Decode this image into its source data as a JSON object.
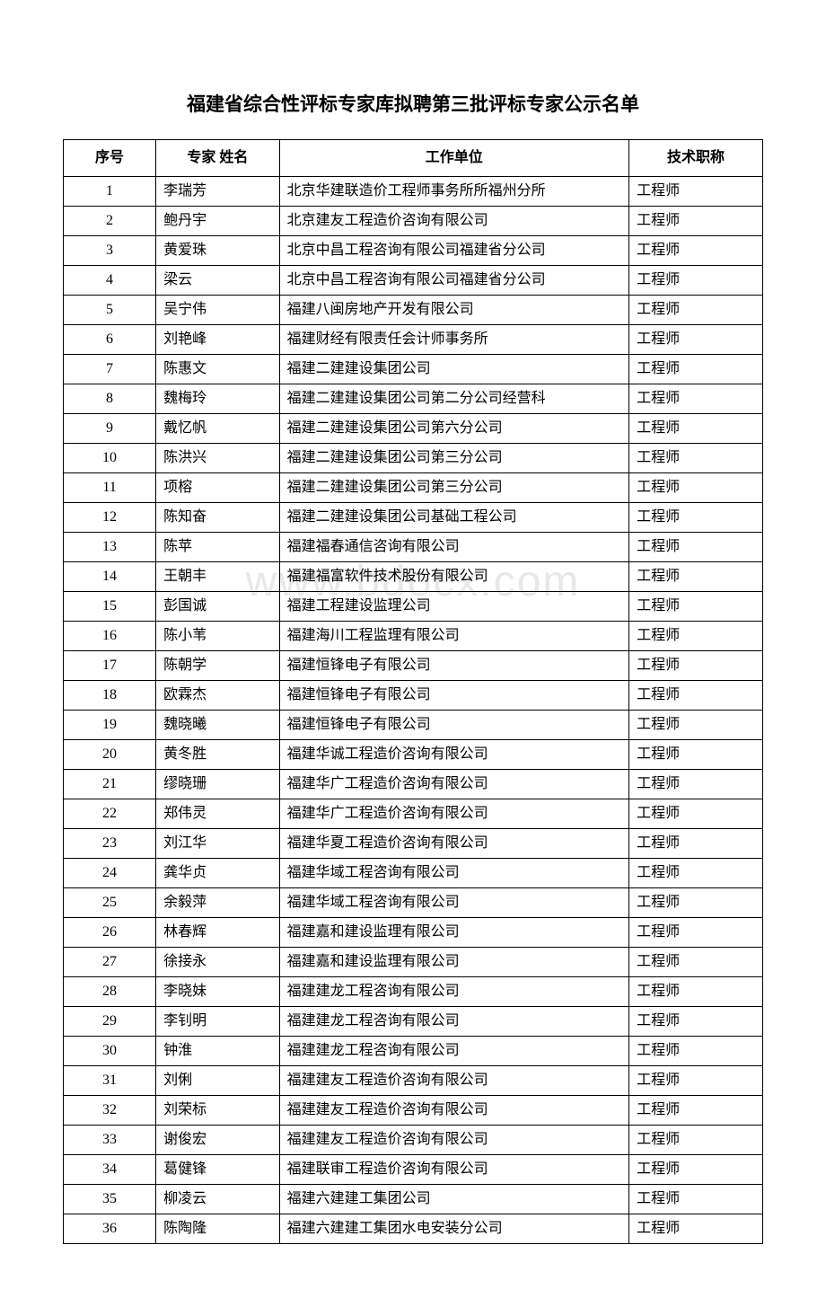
{
  "title": "福建省综合性评标专家库拟聘第三批评标专家公示名单",
  "watermark": "www.bdocx.com",
  "table": {
    "headers": {
      "seq": "序号",
      "name": "专家 姓名",
      "org": "工作单位",
      "title": "技术职称"
    },
    "col_widths": {
      "seq": 90,
      "name": 120,
      "org": 340,
      "title": 130
    },
    "border_color": "#000000",
    "font_size": 16,
    "header_font_weight": "bold",
    "rows": [
      {
        "seq": "1",
        "name": "李瑞芳",
        "org": "北京华建联造价工程师事务所所福州分所",
        "title": "工程师"
      },
      {
        "seq": "2",
        "name": "鲍丹宇",
        "org": "北京建友工程造价咨询有限公司",
        "title": "工程师"
      },
      {
        "seq": "3",
        "name": "黄爱珠",
        "org": "北京中昌工程咨询有限公司福建省分公司",
        "title": "工程师"
      },
      {
        "seq": "4",
        "name": "梁云",
        "org": "北京中昌工程咨询有限公司福建省分公司",
        "title": "工程师"
      },
      {
        "seq": "5",
        "name": "吴宁伟",
        "org": "福建八闽房地产开发有限公司",
        "title": "工程师"
      },
      {
        "seq": "6",
        "name": "刘艳峰",
        "org": "福建财经有限责任会计师事务所",
        "title": "工程师"
      },
      {
        "seq": "7",
        "name": "陈惠文",
        "org": "福建二建建设集团公司",
        "title": "工程师"
      },
      {
        "seq": "8",
        "name": "魏梅玲",
        "org": "福建二建建设集团公司第二分公司经营科",
        "title": "工程师"
      },
      {
        "seq": "9",
        "name": "戴忆帆",
        "org": "福建二建建设集团公司第六分公司",
        "title": "工程师"
      },
      {
        "seq": "10",
        "name": "陈洪兴",
        "org": "福建二建建设集团公司第三分公司",
        "title": "工程师"
      },
      {
        "seq": "11",
        "name": "项榕",
        "org": "福建二建建设集团公司第三分公司",
        "title": "工程师"
      },
      {
        "seq": "12",
        "name": "陈知奋",
        "org": "福建二建建设集团公司基础工程公司",
        "title": "工程师"
      },
      {
        "seq": "13",
        "name": "陈苹",
        "org": "福建福春通信咨询有限公司",
        "title": "工程师"
      },
      {
        "seq": "14",
        "name": "王朝丰",
        "org": "福建福富软件技术股份有限公司",
        "title": "工程师"
      },
      {
        "seq": "15",
        "name": "彭国诚",
        "org": "福建工程建设监理公司",
        "title": "工程师"
      },
      {
        "seq": "16",
        "name": "陈小苇",
        "org": "福建海川工程监理有限公司",
        "title": "工程师"
      },
      {
        "seq": "17",
        "name": "陈朝学",
        "org": "福建恒锋电子有限公司",
        "title": "工程师"
      },
      {
        "seq": "18",
        "name": "欧霖杰",
        "org": "福建恒锋电子有限公司",
        "title": "工程师"
      },
      {
        "seq": "19",
        "name": "魏晓曦",
        "org": "福建恒锋电子有限公司",
        "title": "工程师"
      },
      {
        "seq": "20",
        "name": "黄冬胜",
        "org": "福建华诚工程造价咨询有限公司",
        "title": "工程师"
      },
      {
        "seq": "21",
        "name": "缪晓珊",
        "org": "福建华广工程造价咨询有限公司",
        "title": "工程师"
      },
      {
        "seq": "22",
        "name": "郑伟灵",
        "org": "福建华广工程造价咨询有限公司",
        "title": "工程师"
      },
      {
        "seq": "23",
        "name": "刘江华",
        "org": "福建华夏工程造价咨询有限公司",
        "title": "工程师"
      },
      {
        "seq": "24",
        "name": "龚华贞",
        "org": "福建华域工程咨询有限公司",
        "title": "工程师"
      },
      {
        "seq": "25",
        "name": "余毅萍",
        "org": "福建华域工程咨询有限公司",
        "title": "工程师"
      },
      {
        "seq": "26",
        "name": "林春辉",
        "org": "福建嘉和建设监理有限公司",
        "title": "工程师"
      },
      {
        "seq": "27",
        "name": "徐接永",
        "org": "福建嘉和建设监理有限公司",
        "title": "工程师"
      },
      {
        "seq": "28",
        "name": "李晓妹",
        "org": "福建建龙工程咨询有限公司",
        "title": "工程师"
      },
      {
        "seq": "29",
        "name": "李钊明",
        "org": "福建建龙工程咨询有限公司",
        "title": "工程师"
      },
      {
        "seq": "30",
        "name": "钟淮",
        "org": "福建建龙工程咨询有限公司",
        "title": "工程师"
      },
      {
        "seq": "31",
        "name": "刘俐",
        "org": "福建建友工程造价咨询有限公司",
        "title": "工程师"
      },
      {
        "seq": "32",
        "name": "刘荣标",
        "org": "福建建友工程造价咨询有限公司",
        "title": "工程师"
      },
      {
        "seq": "33",
        "name": "谢俊宏",
        "org": "福建建友工程造价咨询有限公司",
        "title": "工程师"
      },
      {
        "seq": "34",
        "name": "葛健锋",
        "org": "福建联审工程造价咨询有限公司",
        "title": "工程师"
      },
      {
        "seq": "35",
        "name": "柳凌云",
        "org": "福建六建建工集团公司",
        "title": "工程师"
      },
      {
        "seq": "36",
        "name": "陈陶隆",
        "org": "福建六建建工集团水电安装分公司",
        "title": "工程师"
      }
    ]
  }
}
